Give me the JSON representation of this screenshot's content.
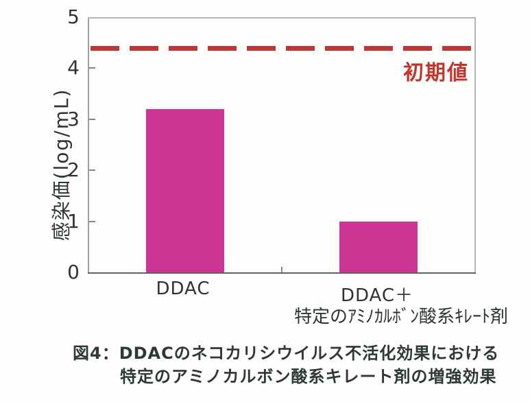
{
  "figure": {
    "caption_line1": "図4：DDACのネコカリシウイルス不活化効果における",
    "caption_line2": "特定のアミノカルボン酸系キレート剤の増強効果"
  },
  "chart_data": {
    "type": "bar",
    "title": "",
    "categories": [
      "DDAC",
      "DDAC＋特定のｱﾐﾉｶﾙﾎﾞﾝ酸系ｷﾚｰﾄ剤"
    ],
    "values": [
      3.2,
      1.0
    ],
    "xlabel": "",
    "ylabel": "感染価(log/mL)",
    "ylim": [
      0,
      5
    ],
    "yticks": [
      0,
      1,
      2,
      3,
      4,
      5
    ],
    "grid": false,
    "legend": "none",
    "bar_color": "#cc3593",
    "x_tick_labels": {
      "bar1": "DDAC",
      "bar2_line1": "DDAC＋",
      "bar2_line2": "特定のｱﾐﾉｶﾙﾎﾞﾝ酸系ｷﾚｰﾄ剤"
    },
    "reference_line": {
      "value": 4.4,
      "style": "dashed",
      "color": "#b8393c",
      "label": "初期値",
      "label_color": "#c2352e"
    }
  },
  "colors": {
    "background": "#fdfdfb",
    "text": "#2c3534",
    "axis_light": "#b4b8b5",
    "axis_left": "#98a3a0",
    "axis_bottom": "#5f6462",
    "tick": "#7f8a87"
  }
}
